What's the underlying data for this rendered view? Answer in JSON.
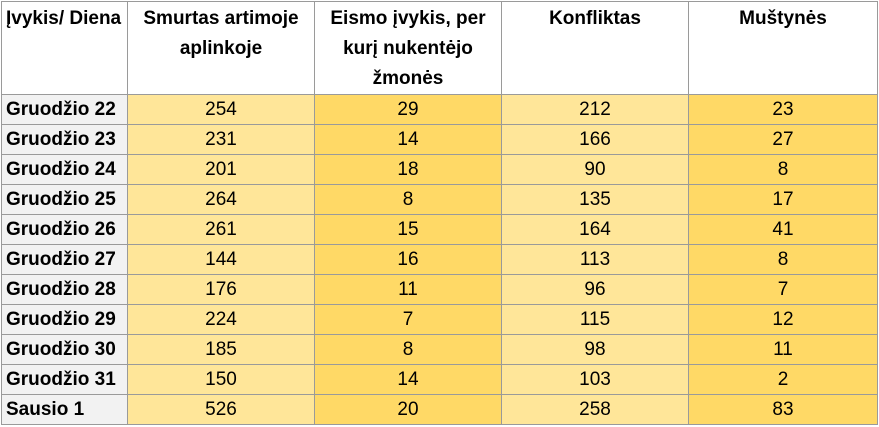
{
  "chart_data": {
    "type": "table",
    "columns": [
      "Įvykis/ Diena",
      "Smurtas artimoje aplinkoje",
      "Eismo įvykis, per kurį nukentėjo žmonės",
      "Konfliktas",
      "Muštynės"
    ],
    "rows": [
      {
        "label": "Gruodžio 22",
        "values": [
          254,
          29,
          212,
          23
        ]
      },
      {
        "label": "Gruodžio 23",
        "values": [
          231,
          14,
          166,
          27
        ]
      },
      {
        "label": "Gruodžio 24",
        "values": [
          201,
          18,
          90,
          8
        ]
      },
      {
        "label": "Gruodžio 25",
        "values": [
          264,
          8,
          135,
          17
        ]
      },
      {
        "label": "Gruodžio 26",
        "values": [
          261,
          15,
          164,
          41
        ]
      },
      {
        "label": "Gruodžio 27",
        "values": [
          144,
          16,
          113,
          8
        ]
      },
      {
        "label": "Gruodžio 28",
        "values": [
          176,
          11,
          96,
          7
        ]
      },
      {
        "label": "Gruodžio 29",
        "values": [
          224,
          7,
          115,
          12
        ]
      },
      {
        "label": "Gruodžio 30",
        "values": [
          185,
          8,
          98,
          11
        ]
      },
      {
        "label": "Gruodžio 31",
        "values": [
          150,
          14,
          103,
          2
        ]
      },
      {
        "label": "Sausio 1",
        "values": [
          526,
          20,
          258,
          83
        ]
      }
    ]
  },
  "colors": {
    "light_cell": "#ffe699",
    "dark_cell": "#ffd966",
    "row_label_bg": "#f2f2f2",
    "border": "#9a9a9a"
  }
}
